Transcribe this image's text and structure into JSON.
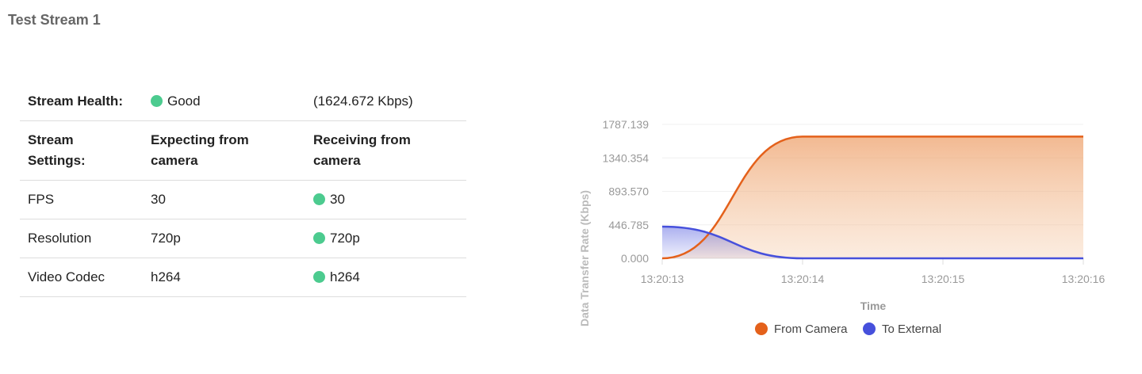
{
  "title": "Test Stream 1",
  "health": {
    "label": "Stream Health:",
    "status": "Good",
    "rate": "(1624.672 Kbps)"
  },
  "settings": {
    "label1": "Stream",
    "label2": "Settings:",
    "expect1": "Expecting from",
    "expect2": "camera",
    "recv1": "Receiving from",
    "recv2": "camera"
  },
  "rows": [
    {
      "name": "FPS",
      "expected": "30",
      "received": "30"
    },
    {
      "name": "Resolution",
      "expected": "720p",
      "received": "720p"
    },
    {
      "name": "Video Codec",
      "expected": "h264",
      "received": "h264"
    }
  ],
  "colors": {
    "good": "#4ccb8f",
    "camera": "#e4611b",
    "external": "#4650dc"
  },
  "chart_data": {
    "type": "area",
    "ylabel": "Data Transfer Rate (Kbps)",
    "xlabel": "Time",
    "x": [
      "13:20:13",
      "13:20:14",
      "13:20:15",
      "13:20:16"
    ],
    "yticks": [
      "0.000",
      "446.785",
      "893.570",
      "1340.354",
      "1787.139"
    ],
    "ylim": [
      0,
      1787.139
    ],
    "series": [
      {
        "name": "From Camera",
        "values": [
          0,
          1624.672,
          1624.672,
          1624.672
        ]
      },
      {
        "name": "To External",
        "values": [
          423,
          0,
          0,
          0
        ]
      }
    ],
    "legend": "bottom"
  }
}
